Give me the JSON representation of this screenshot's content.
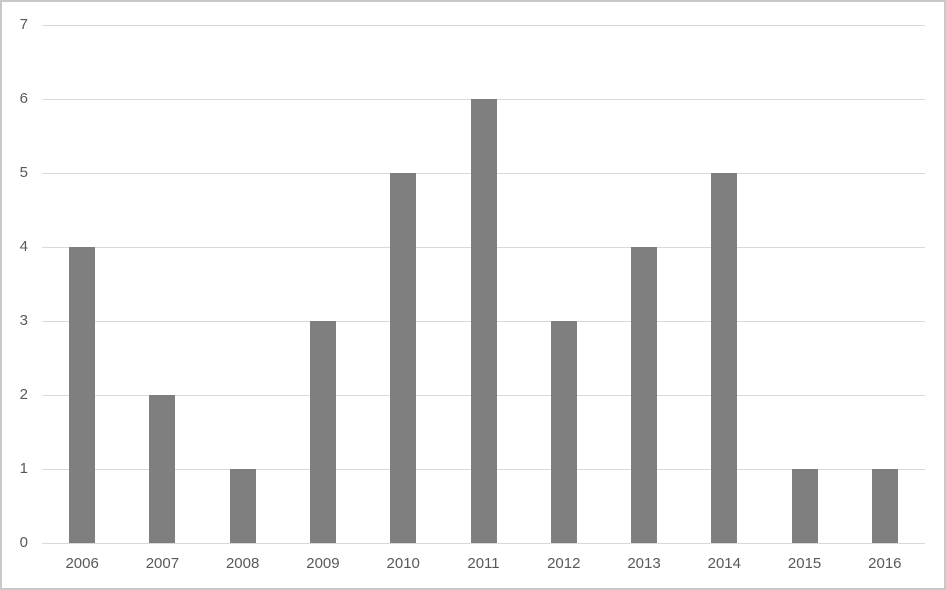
{
  "chart_data": {
    "type": "bar",
    "title": "",
    "xlabel": "",
    "ylabel": "",
    "categories": [
      "2006",
      "2007",
      "2008",
      "2009",
      "2010",
      "2011",
      "2012",
      "2013",
      "2014",
      "2015",
      "2016"
    ],
    "values": [
      4,
      2,
      1,
      3,
      5,
      6,
      3,
      4,
      5,
      1,
      1
    ],
    "ylim": [
      0,
      7
    ],
    "yticks": [
      0,
      1,
      2,
      3,
      4,
      5,
      6,
      7
    ],
    "grid": true,
    "legend": false,
    "colors": {
      "bar": "#7F7F7F",
      "gridline": "#D9D9D9",
      "axis_line": "#D9D9D9",
      "axis_text": "#595959",
      "frame_border": "#C8C8C8",
      "background": "#FFFFFF"
    }
  }
}
